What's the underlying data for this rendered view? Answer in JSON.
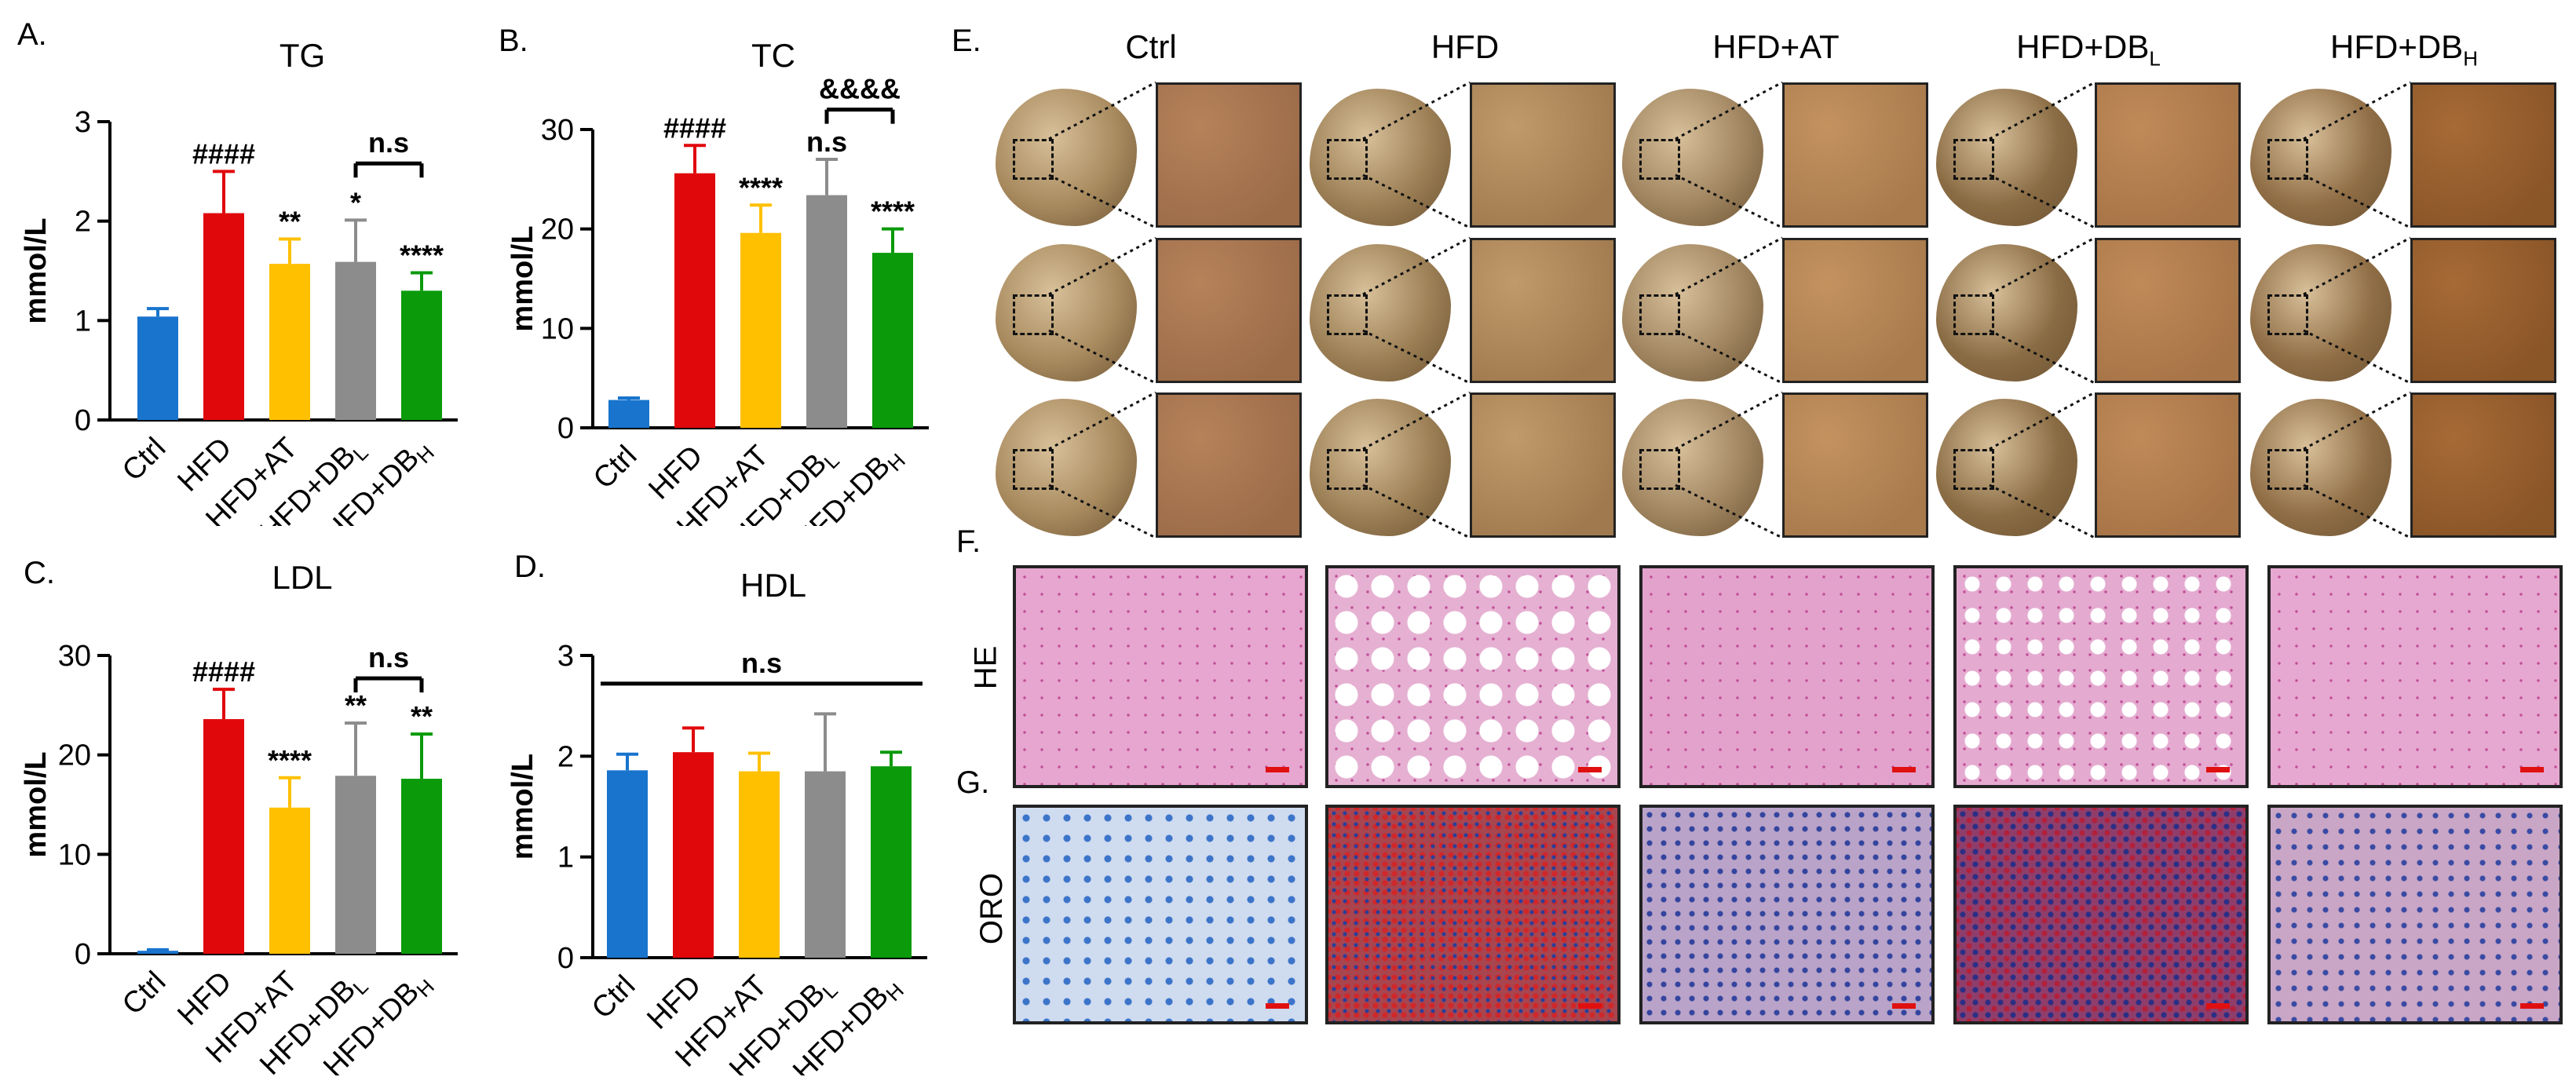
{
  "panel_labels": {
    "a": "A.",
    "b": "B.",
    "c": "C.",
    "d": "D.",
    "e": "E.",
    "f": "F.",
    "g": "G."
  },
  "groups": [
    "Ctrl",
    "HFD",
    "HFD+AT",
    "HFD+DB_L",
    "HFD+DB_H"
  ],
  "group_colors": [
    "#1874CD",
    "#E0080B",
    "#FFC000",
    "#8C8C8C",
    "#0A9A0A"
  ],
  "chart_data": [
    {
      "id": "TG",
      "type": "bar",
      "title": "TG",
      "ylabel": "mmol/L",
      "ylim": [
        0,
        3
      ],
      "yticks": [
        "0",
        "1",
        "2",
        "3"
      ],
      "categories": [
        "Ctrl",
        "HFD",
        "HFD+AT",
        "HFD+DB_L",
        "HFD+DB_H"
      ],
      "values": [
        1.04,
        2.08,
        1.57,
        1.59,
        1.3
      ],
      "errors": [
        0.08,
        0.42,
        0.25,
        0.42,
        0.18
      ],
      "annotations": [
        "",
        "####",
        "**",
        "*",
        "****"
      ],
      "bracket": {
        "from": 3,
        "to": 4,
        "label": "n.s"
      }
    },
    {
      "id": "TC",
      "type": "bar",
      "title": "TC",
      "ylabel": "mmol/L",
      "ylim": [
        0,
        30
      ],
      "yticks": [
        "0",
        "10",
        "20",
        "30"
      ],
      "categories": [
        "Ctrl",
        "HFD",
        "HFD+AT",
        "HFD+DB_L",
        "HFD+DB_H"
      ],
      "values": [
        2.8,
        25.6,
        19.6,
        23.4,
        17.6
      ],
      "errors": [
        0.2,
        2.8,
        2.8,
        3.6,
        2.4
      ],
      "annotations": [
        "",
        "####",
        "****",
        "n.s",
        "****"
      ],
      "bracket": {
        "from": 3,
        "to": 4,
        "label": "&&&&"
      }
    },
    {
      "id": "LDL",
      "type": "bar",
      "title": "LDL",
      "ylabel": "mmol/L",
      "ylim": [
        0,
        30
      ],
      "yticks": [
        "0",
        "10",
        "20",
        "30"
      ],
      "categories": [
        "Ctrl",
        "HFD",
        "HFD+AT",
        "HFD+DB_L",
        "HFD+DB_H"
      ],
      "values": [
        0.3,
        23.6,
        14.7,
        17.9,
        17.6
      ],
      "errors": [
        0.1,
        3.0,
        3.0,
        5.3,
        4.5
      ],
      "annotations": [
        "",
        "####",
        "****",
        "**",
        "**"
      ],
      "bracket": {
        "from": 3,
        "to": 4,
        "label": "n.s"
      }
    },
    {
      "id": "HDL",
      "type": "bar",
      "title": "HDL",
      "ylabel": "mmol/L",
      "ylim": [
        0,
        3
      ],
      "yticks": [
        "0",
        "1",
        "2",
        "3"
      ],
      "categories": [
        "Ctrl",
        "HFD",
        "HFD+AT",
        "HFD+DB_L",
        "HFD+DB_H"
      ],
      "values": [
        1.86,
        2.04,
        1.85,
        1.85,
        1.9
      ],
      "errors": [
        0.16,
        0.24,
        0.18,
        0.57,
        0.14
      ],
      "annotations": [
        "",
        "",
        "",
        "",
        ""
      ],
      "bracket": {
        "from": 0,
        "to": 4,
        "label": "n.s"
      }
    }
  ],
  "histology": {
    "columns": [
      "Ctrl",
      "HFD",
      "HFD+AT",
      "HFD+DB",
      "HFD+DB"
    ],
    "column_subscripts": [
      "",
      "",
      "",
      "L",
      "H"
    ],
    "row_labels": {
      "he": "HE",
      "oro": "ORO"
    }
  }
}
